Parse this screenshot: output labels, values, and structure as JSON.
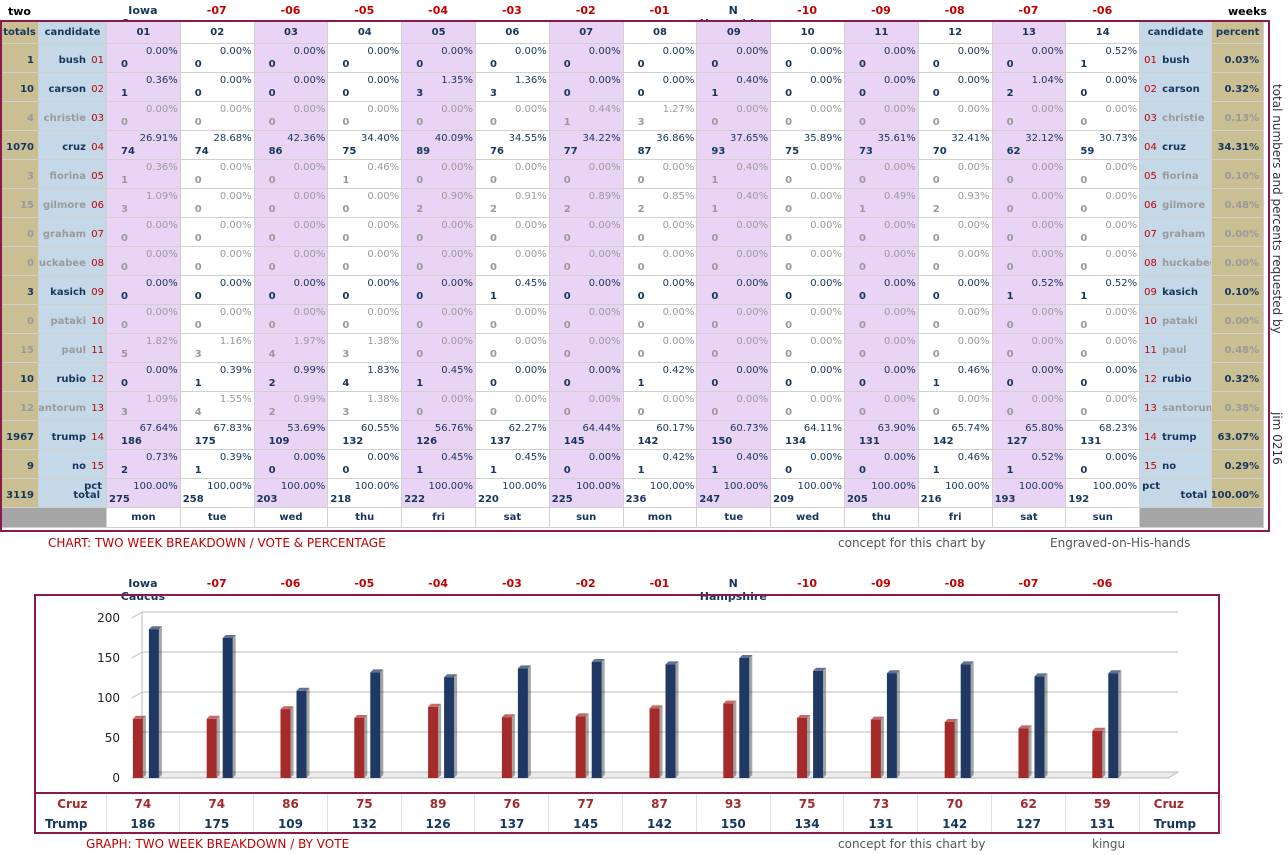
{
  "top": {
    "corner_left": "two",
    "corner_right": "weeks",
    "day_labels": [
      {
        "text": "Iowa Caucus",
        "color": "#17365d"
      },
      {
        "text": "-07",
        "color": "#c00000"
      },
      {
        "text": "-06",
        "color": "#c00000"
      },
      {
        "text": "-05",
        "color": "#c00000"
      },
      {
        "text": "-04",
        "color": "#c00000"
      },
      {
        "text": "-03",
        "color": "#c00000"
      },
      {
        "text": "-02",
        "color": "#c00000"
      },
      {
        "text": "-01",
        "color": "#c00000"
      },
      {
        "text": "N Hampshire",
        "color": "#17365d"
      },
      {
        "text": "-10",
        "color": "#c00000"
      },
      {
        "text": "-09",
        "color": "#c00000"
      },
      {
        "text": "-08",
        "color": "#c00000"
      },
      {
        "text": "-07",
        "color": "#c00000"
      },
      {
        "text": "-06",
        "color": "#c00000"
      }
    ],
    "col_totals": "totals",
    "col_candidate": "candidate",
    "col_candidate2": "candidate",
    "col_percent": "percent",
    "day_cols": [
      "01",
      "02",
      "03",
      "04",
      "05",
      "06",
      "07",
      "08",
      "09",
      "10",
      "11",
      "12",
      "13",
      "14"
    ],
    "weekdays": [
      "mon",
      "tue",
      "wed",
      "thu",
      "fri",
      "sat",
      "sun",
      "mon",
      "tue",
      "wed",
      "thu",
      "fri",
      "sat",
      "sun"
    ],
    "candidates": [
      {
        "idx": "01",
        "name": "bush",
        "total": "1",
        "percent": "0.03%",
        "active": true,
        "votes": [
          "0",
          "0",
          "0",
          "0",
          "0",
          "0",
          "0",
          "0",
          "0",
          "0",
          "0",
          "0",
          "0",
          "1"
        ],
        "pcts": [
          "0.00%",
          "0.00%",
          "0.00%",
          "0.00%",
          "0.00%",
          "0.00%",
          "0.00%",
          "0.00%",
          "0.00%",
          "0.00%",
          "0.00%",
          "0.00%",
          "0.00%",
          "0.52%"
        ]
      },
      {
        "idx": "02",
        "name": "carson",
        "total": "10",
        "percent": "0.32%",
        "active": true,
        "votes": [
          "1",
          "0",
          "0",
          "0",
          "3",
          "3",
          "0",
          "0",
          "1",
          "0",
          "0",
          "0",
          "2",
          "0"
        ],
        "pcts": [
          "0.36%",
          "0.00%",
          "0.00%",
          "0.00%",
          "1.35%",
          "1.36%",
          "0.00%",
          "0.00%",
          "0.40%",
          "0.00%",
          "0.00%",
          "0.00%",
          "1.04%",
          "0.00%"
        ]
      },
      {
        "idx": "03",
        "name": "christie",
        "total": "4",
        "percent": "0.13%",
        "active": false,
        "votes": [
          "0",
          "0",
          "0",
          "0",
          "0",
          "0",
          "1",
          "3",
          "0",
          "0",
          "0",
          "0",
          "0",
          "0"
        ],
        "pcts": [
          "0.00%",
          "0.00%",
          "0.00%",
          "0.00%",
          "0.00%",
          "0.00%",
          "0.44%",
          "1.27%",
          "0.00%",
          "0.00%",
          "0.00%",
          "0.00%",
          "0.00%",
          "0.00%"
        ]
      },
      {
        "idx": "04",
        "name": "cruz",
        "total": "1070",
        "percent": "34.31%",
        "active": true,
        "votes": [
          "74",
          "74",
          "86",
          "75",
          "89",
          "76",
          "77",
          "87",
          "93",
          "75",
          "73",
          "70",
          "62",
          "59"
        ],
        "pcts": [
          "26.91%",
          "28.68%",
          "42.36%",
          "34.40%",
          "40.09%",
          "34.55%",
          "34.22%",
          "36.86%",
          "37.65%",
          "35.89%",
          "35.61%",
          "32.41%",
          "32.12%",
          "30.73%"
        ]
      },
      {
        "idx": "05",
        "name": "fiorina",
        "total": "3",
        "percent": "0.10%",
        "active": false,
        "votes": [
          "1",
          "0",
          "0",
          "1",
          "0",
          "0",
          "0",
          "0",
          "1",
          "0",
          "0",
          "0",
          "0",
          "0"
        ],
        "pcts": [
          "0.36%",
          "0.00%",
          "0.00%",
          "0.46%",
          "0.00%",
          "0.00%",
          "0.00%",
          "0.00%",
          "0.40%",
          "0.00%",
          "0.00%",
          "0.00%",
          "0.00%",
          "0.00%"
        ]
      },
      {
        "idx": "06",
        "name": "gilmore",
        "total": "15",
        "percent": "0.48%",
        "active": false,
        "votes": [
          "3",
          "0",
          "0",
          "0",
          "2",
          "2",
          "2",
          "2",
          "1",
          "0",
          "1",
          "2",
          "0",
          "0"
        ],
        "pcts": [
          "1.09%",
          "0.00%",
          "0.00%",
          "0.00%",
          "0.90%",
          "0.91%",
          "0.89%",
          "0.85%",
          "0.40%",
          "0.00%",
          "0.49%",
          "0.93%",
          "0.00%",
          "0.00%"
        ]
      },
      {
        "idx": "07",
        "name": "graham",
        "total": "0",
        "percent": "0.00%",
        "active": false,
        "votes": [
          "0",
          "0",
          "0",
          "0",
          "0",
          "0",
          "0",
          "0",
          "0",
          "0",
          "0",
          "0",
          "0",
          "0"
        ],
        "pcts": [
          "0.00%",
          "0.00%",
          "0.00%",
          "0.00%",
          "0.00%",
          "0.00%",
          "0.00%",
          "0.00%",
          "0.00%",
          "0.00%",
          "0.00%",
          "0.00%",
          "0.00%",
          "0.00%"
        ]
      },
      {
        "idx": "08",
        "name": "huckabee",
        "total": "0",
        "percent": "0.00%",
        "active": false,
        "votes": [
          "0",
          "0",
          "0",
          "0",
          "0",
          "0",
          "0",
          "0",
          "0",
          "0",
          "0",
          "0",
          "0",
          "0"
        ],
        "pcts": [
          "0.00%",
          "0.00%",
          "0.00%",
          "0.00%",
          "0.00%",
          "0.00%",
          "0.00%",
          "0.00%",
          "0.00%",
          "0.00%",
          "0.00%",
          "0.00%",
          "0.00%",
          "0.00%"
        ]
      },
      {
        "idx": "09",
        "name": "kasich",
        "total": "3",
        "percent": "0.10%",
        "active": true,
        "votes": [
          "0",
          "0",
          "0",
          "0",
          "0",
          "1",
          "0",
          "0",
          "0",
          "0",
          "0",
          "0",
          "1",
          "1"
        ],
        "pcts": [
          "0.00%",
          "0.00%",
          "0.00%",
          "0.00%",
          "0.00%",
          "0.45%",
          "0.00%",
          "0.00%",
          "0.00%",
          "0.00%",
          "0.00%",
          "0.00%",
          "0.52%",
          "0.52%"
        ]
      },
      {
        "idx": "10",
        "name": "pataki",
        "total": "0",
        "percent": "0.00%",
        "active": false,
        "votes": [
          "0",
          "0",
          "0",
          "0",
          "0",
          "0",
          "0",
          "0",
          "0",
          "0",
          "0",
          "0",
          "0",
          "0"
        ],
        "pcts": [
          "0.00%",
          "0.00%",
          "0.00%",
          "0.00%",
          "0.00%",
          "0.00%",
          "0.00%",
          "0.00%",
          "0.00%",
          "0.00%",
          "0.00%",
          "0.00%",
          "0.00%",
          "0.00%"
        ]
      },
      {
        "idx": "11",
        "name": "paul",
        "total": "15",
        "percent": "0.48%",
        "active": false,
        "votes": [
          "5",
          "3",
          "4",
          "3",
          "0",
          "0",
          "0",
          "0",
          "0",
          "0",
          "0",
          "0",
          "0",
          "0"
        ],
        "pcts": [
          "1.82%",
          "1.16%",
          "1.97%",
          "1.38%",
          "0.00%",
          "0.00%",
          "0.00%",
          "0.00%",
          "0.00%",
          "0.00%",
          "0.00%",
          "0.00%",
          "0.00%",
          "0.00%"
        ]
      },
      {
        "idx": "12",
        "name": "rubio",
        "total": "10",
        "percent": "0.32%",
        "active": true,
        "votes": [
          "0",
          "1",
          "2",
          "4",
          "1",
          "0",
          "0",
          "1",
          "0",
          "0",
          "0",
          "1",
          "0",
          "0"
        ],
        "pcts": [
          "0.00%",
          "0.39%",
          "0.99%",
          "1.83%",
          "0.45%",
          "0.00%",
          "0.00%",
          "0.42%",
          "0.00%",
          "0.00%",
          "0.00%",
          "0.46%",
          "0.00%",
          "0.00%"
        ]
      },
      {
        "idx": "13",
        "name": "santorum",
        "total": "12",
        "percent": "0.38%",
        "active": false,
        "votes": [
          "3",
          "4",
          "2",
          "3",
          "0",
          "0",
          "0",
          "0",
          "0",
          "0",
          "0",
          "0",
          "0",
          "0"
        ],
        "pcts": [
          "1.09%",
          "1.55%",
          "0.99%",
          "1.38%",
          "0.00%",
          "0.00%",
          "0.00%",
          "0.00%",
          "0.00%",
          "0.00%",
          "0.00%",
          "0.00%",
          "0.00%",
          "0.00%"
        ]
      },
      {
        "idx": "14",
        "name": "trump",
        "total": "1967",
        "percent": "63.07%",
        "active": true,
        "votes": [
          "186",
          "175",
          "109",
          "132",
          "126",
          "137",
          "145",
          "142",
          "150",
          "134",
          "131",
          "142",
          "127",
          "131"
        ],
        "pcts": [
          "67.64%",
          "67.83%",
          "53.69%",
          "60.55%",
          "56.76%",
          "62.27%",
          "64.44%",
          "60.17%",
          "60.73%",
          "64.11%",
          "63.90%",
          "65.74%",
          "65.80%",
          "68.23%"
        ]
      },
      {
        "idx": "15",
        "name": "no",
        "total": "9",
        "percent": "0.29%",
        "active": true,
        "votes": [
          "2",
          "1",
          "0",
          "0",
          "1",
          "1",
          "0",
          "1",
          "1",
          "0",
          "0",
          "1",
          "1",
          "0"
        ],
        "pcts": [
          "0.73%",
          "0.39%",
          "0.00%",
          "0.00%",
          "0.45%",
          "0.45%",
          "0.00%",
          "0.42%",
          "0.40%",
          "0.00%",
          "0.00%",
          "0.46%",
          "0.52%",
          "0.00%"
        ]
      }
    ],
    "total_row": {
      "grand_total": "3119",
      "label": "total",
      "pct_label": "pct",
      "percent": "100.00%",
      "day_totals": [
        "275",
        "258",
        "203",
        "218",
        "222",
        "220",
        "225",
        "236",
        "247",
        "209",
        "205",
        "216",
        "193",
        "192"
      ],
      "day_pcts": [
        "100.00%",
        "100.00%",
        "100.00%",
        "100.00%",
        "100.00%",
        "100.00%",
        "100.00%",
        "100.00%",
        "100.00%",
        "100.00%",
        "100.00%",
        "100.00%",
        "100.00%",
        "100.00%"
      ]
    },
    "caption_left": "CHART: TWO WEEK BREAKDOWN / VOTE & PERCENTAGE",
    "caption_mid": "concept for this chart by",
    "caption_right": "Engraved-on-His-hands",
    "side_note_1": "total numbers and percents requested by",
    "side_note_2": "jim 0216"
  },
  "chart_data": {
    "type": "bar",
    "categories": [
      "Iowa Caucus",
      "-07",
      "-06",
      "-05",
      "-04",
      "-03",
      "-02",
      "-01",
      "N Hampshire",
      "-10",
      "-09",
      "-08",
      "-07",
      "-06"
    ],
    "series": [
      {
        "name": "Cruz",
        "color": "#a52a2a",
        "values": [
          74,
          74,
          86,
          75,
          89,
          76,
          77,
          87,
          93,
          75,
          73,
          70,
          62,
          59
        ]
      },
      {
        "name": "Trump",
        "color": "#1f3864",
        "values": [
          186,
          175,
          109,
          132,
          126,
          137,
          145,
          142,
          150,
          134,
          131,
          142,
          127,
          131
        ]
      }
    ],
    "ylim": [
      0,
      200
    ],
    "yticks": [
      0,
      50,
      100,
      150,
      200
    ],
    "grid": true,
    "caption_left": "GRAPH: TWO WEEK BREAKDOWN / BY VOTE",
    "caption_mid": "concept for this chart by",
    "caption_right": "kingu"
  }
}
